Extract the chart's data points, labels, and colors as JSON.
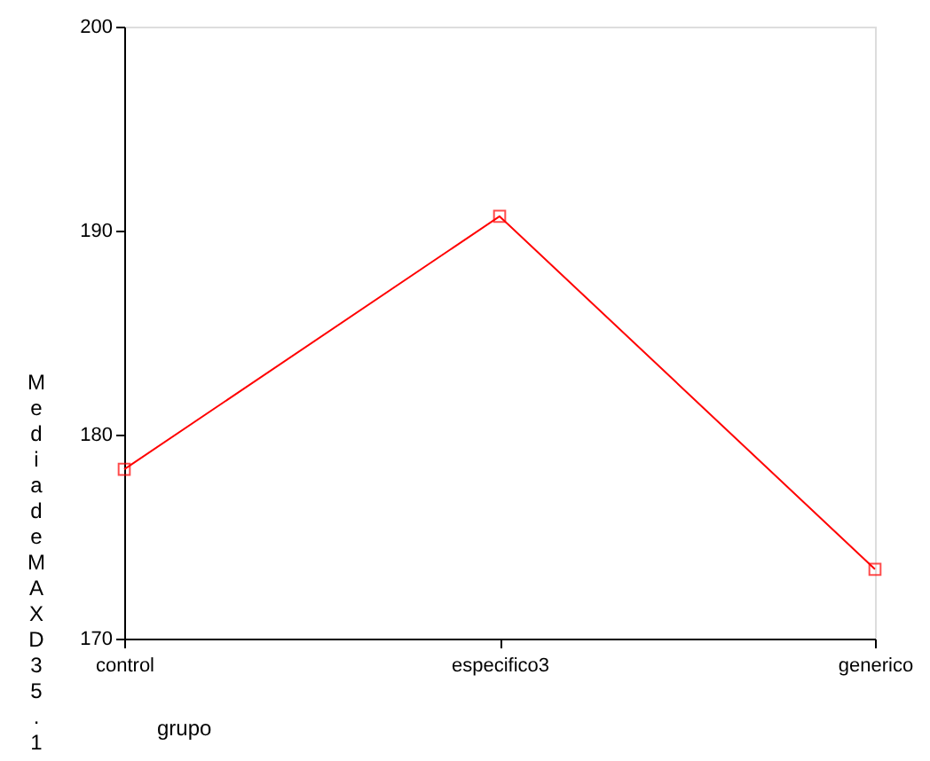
{
  "chart_data": {
    "type": "line",
    "xlabel": "grupo",
    "ylabel": "Media de MAXD35.1",
    "categories": [
      "control",
      "especifico3",
      "generico"
    ],
    "series": [
      {
        "color": "#ff0000",
        "values": [
          178.3,
          190.7,
          173.4
        ]
      }
    ],
    "ylim": [
      170,
      200
    ],
    "yticks": [
      170,
      180,
      190,
      200
    ],
    "grid": false,
    "marker": "square",
    "line_style": "solid"
  }
}
